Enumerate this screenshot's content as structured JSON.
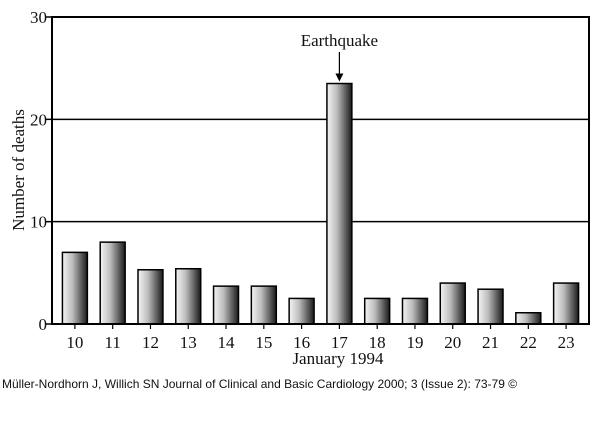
{
  "chart_data": {
    "type": "bar",
    "title": "",
    "xlabel": "January 1994",
    "ylabel": "Number of deaths",
    "ylim": [
      0,
      30
    ],
    "yticks": [
      "0",
      "10",
      "20",
      "30"
    ],
    "grid": "horizontal",
    "categories": [
      "10",
      "11",
      "12",
      "13",
      "14",
      "15",
      "16",
      "17",
      "18",
      "19",
      "20",
      "21",
      "22",
      "23"
    ],
    "values": [
      7,
      8,
      5.3,
      5.4,
      3.7,
      3.7,
      2.5,
      23.5,
      2.5,
      2.5,
      4,
      3.4,
      1.1,
      4
    ],
    "annotation": {
      "text": "Earthquake",
      "category": "17"
    },
    "bar_fill": [
      "#f4f4f4",
      "#1a1a1a"
    ]
  },
  "caption": "Müller-Nordhorn J, Willich SN Journal of Clinical and Basic Cardiology 2000; 3 (Issue 2): 73-79 ©"
}
